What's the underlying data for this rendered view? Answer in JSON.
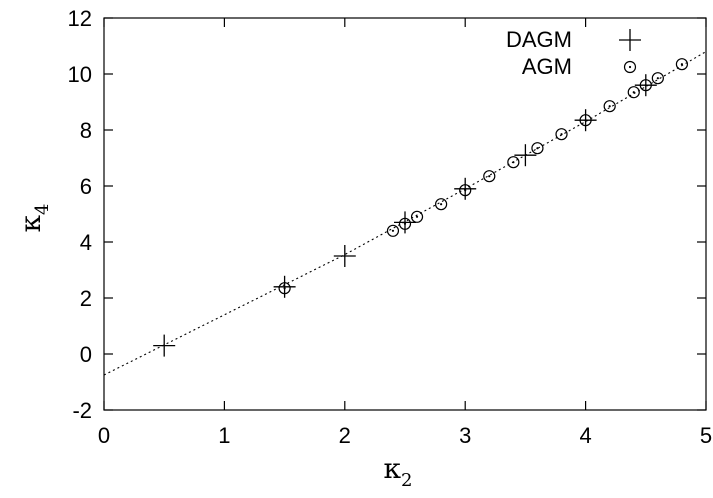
{
  "chart_data": {
    "type": "scatter",
    "title": "",
    "xlabel": {
      "main": "κ",
      "sub": "2"
    },
    "ylabel": {
      "main": "κ",
      "sub": "4"
    },
    "xlim": [
      0,
      5
    ],
    "ylim": [
      -2,
      12
    ],
    "x_ticks": [
      "0",
      "1",
      "2",
      "3",
      "4",
      "5"
    ],
    "y_ticks": [
      "-2",
      "0",
      "2",
      "4",
      "6",
      "8",
      "10",
      "12"
    ],
    "grid": false,
    "legend_position": "top-right",
    "series": [
      {
        "name": "DAGM",
        "marker": "plus",
        "x": [
          0.5,
          1.5,
          2.0,
          2.5,
          3.0,
          3.5,
          4.0,
          4.5
        ],
        "y": [
          0.3,
          2.4,
          3.5,
          4.7,
          5.9,
          7.1,
          8.35,
          9.6
        ]
      },
      {
        "name": "AGM",
        "marker": "circle",
        "x": [
          1.5,
          2.4,
          2.5,
          2.6,
          2.8,
          3.0,
          3.2,
          3.4,
          3.6,
          3.8,
          4.0,
          4.2,
          4.4,
          4.5,
          4.6,
          4.8
        ],
        "y": [
          2.35,
          4.4,
          4.65,
          4.9,
          5.35,
          5.85,
          6.35,
          6.85,
          7.35,
          7.85,
          8.35,
          8.85,
          9.35,
          9.6,
          9.85,
          10.35
        ]
      },
      {
        "name": "",
        "marker": "dotted-line",
        "x": [
          0,
          1,
          2,
          3,
          4,
          5
        ],
        "y": [
          -0.75,
          1.4,
          3.55,
          5.9,
          8.3,
          10.8
        ]
      }
    ]
  }
}
